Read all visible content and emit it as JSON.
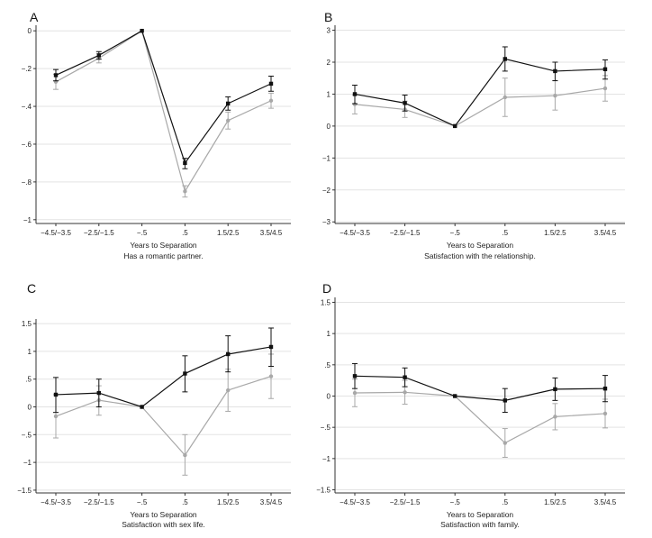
{
  "chart_data": [
    {
      "panel": "A",
      "type": "line",
      "categories": [
        "−4.5/−3.5",
        "−2.5/−1.5",
        "−.5",
        ".5",
        "1.5/2.5",
        "3.5/4.5"
      ],
      "ylim": [
        -1.02,
        0.02
      ],
      "yticks": [
        0,
        -0.2,
        -0.4,
        -0.6,
        -0.8,
        -1
      ],
      "ytick_labels": [
        "0",
        "−.2",
        "−.4",
        "−.6",
        "−.8",
        "−1"
      ],
      "xlabel": "Years to Separation",
      "caption": "Has a romantic partner.",
      "series": [
        {
          "name": "dark",
          "color": "#111111",
          "marker": "square",
          "values": [
            -0.235,
            -0.13,
            0,
            -0.7,
            -0.385,
            -0.28
          ],
          "ci": [
            [
              -0.205,
              -0.265
            ],
            [
              -0.11,
              -0.15
            ],
            [
              0,
              0
            ],
            [
              -0.675,
              -0.73
            ],
            [
              -0.35,
              -0.42
            ],
            [
              -0.24,
              -0.32
            ]
          ]
        },
        {
          "name": "gray",
          "color": "#a8a8a8",
          "marker": "circle",
          "values": [
            -0.27,
            -0.145,
            0,
            -0.85,
            -0.475,
            -0.37
          ],
          "ci": [
            [
              -0.23,
              -0.31
            ],
            [
              -0.12,
              -0.17
            ],
            [
              0,
              0
            ],
            [
              -0.82,
              -0.88
            ],
            [
              -0.43,
              -0.52
            ],
            [
              -0.33,
              -0.41
            ]
          ]
        }
      ]
    },
    {
      "panel": "B",
      "type": "line",
      "categories": [
        "−4.5/−3.5",
        "−2.5/−1.5",
        "−.5",
        ".5",
        "1.5/2.5",
        "3.5/4.5"
      ],
      "ylim": [
        -3.05,
        3.1
      ],
      "yticks": [
        3,
        2,
        1,
        0,
        -1,
        -2,
        -3
      ],
      "ytick_labels": [
        "3",
        "2",
        "1",
        "0",
        "−1",
        "−2",
        "−3"
      ],
      "xlabel": "Years to Separation",
      "caption": "Satisfaction with the relationship.",
      "series": [
        {
          "name": "dark",
          "color": "#111111",
          "marker": "square",
          "values": [
            1.0,
            0.72,
            0,
            2.1,
            1.72,
            1.78
          ],
          "ci": [
            [
              1.28,
              0.7
            ],
            [
              0.97,
              0.47
            ],
            [
              0,
              0
            ],
            [
              2.48,
              1.72
            ],
            [
              2.0,
              1.42
            ],
            [
              2.07,
              1.47
            ]
          ]
        },
        {
          "name": "gray",
          "color": "#a8a8a8",
          "marker": "circle",
          "values": [
            0.68,
            0.52,
            0,
            0.9,
            0.95,
            1.18
          ],
          "ci": [
            [
              0.98,
              0.38
            ],
            [
              0.78,
              0.27
            ],
            [
              0,
              0
            ],
            [
              1.5,
              0.3
            ],
            [
              1.42,
              0.5
            ],
            [
              1.58,
              0.78
            ]
          ]
        }
      ]
    },
    {
      "panel": "C",
      "type": "line",
      "categories": [
        "−4.5/−3.5",
        "−2.5/−1.5",
        "−.5",
        ".5",
        "1.5/2.5",
        "3.5/4.5"
      ],
      "ylim": [
        -1.55,
        1.55
      ],
      "yticks": [
        1.5,
        1,
        0.5,
        0,
        -0.5,
        -1,
        -1.5
      ],
      "ytick_labels": [
        "1.5",
        "1",
        ".5",
        "0",
        "−.5",
        "−1",
        "−1.5"
      ],
      "xlabel": "Years to Separation",
      "caption": "Satisfaction with sex life.",
      "series": [
        {
          "name": "dark",
          "color": "#111111",
          "marker": "square",
          "values": [
            0.22,
            0.25,
            0,
            0.6,
            0.95,
            1.08
          ],
          "ci": [
            [
              0.53,
              -0.1
            ],
            [
              0.5,
              0.0
            ],
            [
              0,
              0
            ],
            [
              0.92,
              0.27
            ],
            [
              1.28,
              0.63
            ],
            [
              1.42,
              0.73
            ]
          ]
        },
        {
          "name": "gray",
          "color": "#a8a8a8",
          "marker": "circle",
          "values": [
            -0.17,
            0.12,
            0,
            -0.87,
            0.3,
            0.55
          ],
          "ci": [
            [
              0.22,
              -0.56
            ],
            [
              0.38,
              -0.15
            ],
            [
              0,
              0
            ],
            [
              -0.5,
              -1.23
            ],
            [
              0.68,
              -0.08
            ],
            [
              0.95,
              0.15
            ]
          ]
        }
      ]
    },
    {
      "panel": "D",
      "type": "line",
      "categories": [
        "−4.5/−3.5",
        "−2.5/−1.5",
        "−.5",
        ".5",
        "1.5/2.5",
        "3.5/4.5"
      ],
      "ylim": [
        -1.55,
        1.55
      ],
      "yticks": [
        1.5,
        1,
        0.5,
        0,
        -0.5,
        -1,
        -1.5
      ],
      "ytick_labels": [
        "1.5",
        "1",
        ".5",
        "0",
        "−.5",
        "−1",
        "−1.5"
      ],
      "xlabel": "Years to Separation",
      "caption": "Satisfaction with family.",
      "series": [
        {
          "name": "dark",
          "color": "#111111",
          "marker": "square",
          "values": [
            0.32,
            0.3,
            0,
            -0.07,
            0.11,
            0.12
          ],
          "ci": [
            [
              0.52,
              0.12
            ],
            [
              0.45,
              0.15
            ],
            [
              0,
              0
            ],
            [
              0.12,
              -0.26
            ],
            [
              0.29,
              -0.07
            ],
            [
              0.33,
              -0.09
            ]
          ]
        },
        {
          "name": "gray",
          "color": "#a8a8a8",
          "marker": "circle",
          "values": [
            0.05,
            0.06,
            0,
            -0.75,
            -0.33,
            -0.28
          ],
          "ci": [
            [
              0.27,
              -0.17
            ],
            [
              0.25,
              -0.13
            ],
            [
              0,
              0
            ],
            [
              -0.52,
              -0.98
            ],
            [
              -0.12,
              -0.54
            ],
            [
              -0.05,
              -0.51
            ]
          ]
        }
      ]
    }
  ]
}
